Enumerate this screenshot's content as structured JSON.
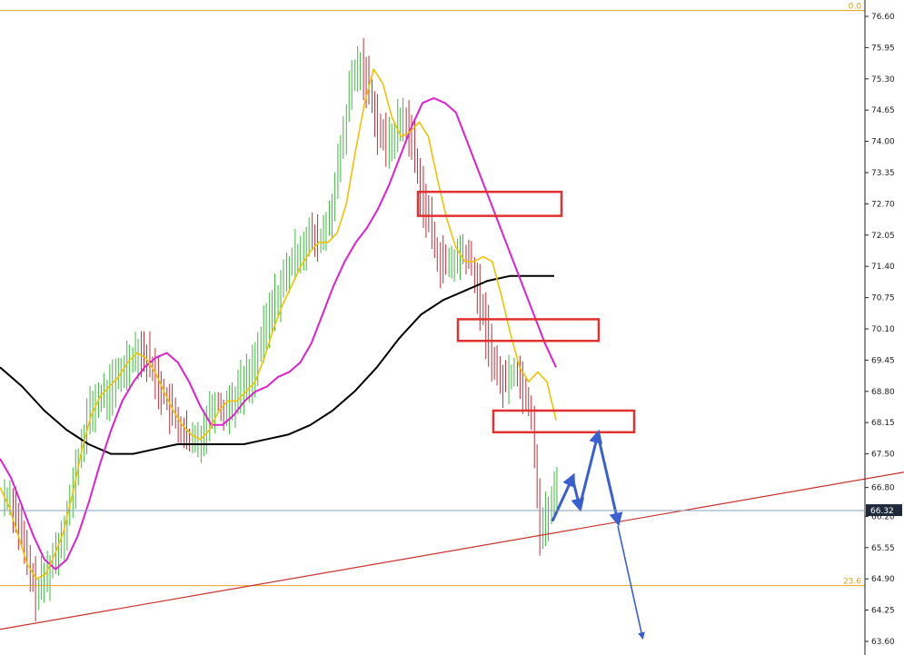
{
  "chart_data": {
    "type": "candlestick",
    "title": "",
    "xlabel": "",
    "ylabel": "",
    "ylim": [
      63.6,
      76.6
    ],
    "y_ticks": [
      "76.60",
      "75.95",
      "75.30",
      "74.65",
      "74.00",
      "73.35",
      "72.70",
      "72.05",
      "71.40",
      "70.75",
      "70.10",
      "69.45",
      "68.80",
      "68.15",
      "67.50",
      "66.80",
      "66.20",
      "65.55",
      "64.90",
      "64.25",
      "63.60"
    ],
    "current_price": "66.32",
    "current_price_value": 66.32,
    "fib_levels": [
      {
        "label": "0.0",
        "value": 76.72,
        "color": "#e0a010"
      },
      {
        "label": "23.6",
        "value": 64.76,
        "color": "#f0a020"
      }
    ],
    "trendline": {
      "color": "#c83030",
      "start": [
        0,
        63.85
      ],
      "end": [
        995,
        67.12
      ]
    },
    "close_series": [
      66.6,
      66.0,
      65.2,
      64.6,
      64.9,
      65.3,
      65.8,
      66.5,
      67.4,
      68.2,
      68.6,
      68.7,
      68.9,
      69.2,
      69.5,
      69.7,
      69.5,
      69.1,
      68.7,
      68.3,
      68.0,
      67.7,
      67.8,
      68.2,
      68.6,
      68.4,
      68.6,
      68.9,
      69.1,
      69.6,
      70.2,
      70.7,
      71.1,
      71.5,
      71.8,
      72.0,
      71.9,
      72.2,
      73.0,
      74.2,
      75.3,
      75.6,
      75.1,
      74.3,
      73.9,
      74.2,
      74.5,
      74.0,
      73.0,
      72.3,
      71.6,
      71.4,
      71.5,
      71.7,
      71.4,
      70.6,
      69.8,
      69.1,
      69.0,
      69.3,
      68.9,
      68.3,
      65.9,
      66.3,
      66.8
    ],
    "ma_fast": {
      "color": "#f2c200",
      "values": [
        66.8,
        66.4,
        65.8,
        65.2,
        64.9,
        65.0,
        65.4,
        65.9,
        66.7,
        67.6,
        68.3,
        68.7,
        68.9,
        69.1,
        69.4,
        69.6,
        69.5,
        69.2,
        68.8,
        68.4,
        68.1,
        67.9,
        67.8,
        68.0,
        68.4,
        68.6,
        68.6,
        68.8,
        69.0,
        69.5,
        70.1,
        70.6,
        71.0,
        71.4,
        71.7,
        71.9,
        71.9,
        72.1,
        72.7,
        73.8,
        74.8,
        75.5,
        75.2,
        74.5,
        74.1,
        74.2,
        74.4,
        74.1,
        73.2,
        72.4,
        71.8,
        71.5,
        71.5,
        71.6,
        71.5,
        70.8,
        70.0,
        69.3,
        69.0,
        69.2,
        69.0,
        68.2
      ]
    },
    "ma_mid": {
      "color": "#e020d0",
      "values": [
        67.4,
        67.0,
        66.4,
        65.8,
        65.3,
        65.1,
        65.3,
        65.8,
        66.5,
        67.3,
        68.0,
        68.6,
        69.0,
        69.3,
        69.5,
        69.6,
        69.4,
        69.0,
        68.5,
        68.1,
        68.1,
        68.3,
        68.6,
        68.8,
        68.9,
        69.1,
        69.2,
        69.4,
        69.8,
        70.4,
        71.0,
        71.5,
        71.9,
        72.2,
        72.6,
        73.1,
        73.7,
        74.3,
        74.8,
        74.9,
        74.8,
        74.6,
        74.0,
        73.4,
        72.8,
        72.2,
        71.6,
        71.0,
        70.4,
        69.8,
        69.3
      ]
    },
    "ma_slow": {
      "color": "#000000",
      "values": [
        69.3,
        68.9,
        68.4,
        68.0,
        67.7,
        67.5,
        67.5,
        67.6,
        67.7,
        67.7,
        67.7,
        67.7,
        67.8,
        67.9,
        68.1,
        68.4,
        68.8,
        69.3,
        69.9,
        70.4,
        70.7,
        70.9,
        71.1,
        71.2,
        71.2,
        71.2
      ]
    },
    "zones": [
      {
        "name": "resistance-zone-upper",
        "y_top": 72.95,
        "y_bottom": 72.45
      },
      {
        "name": "resistance-zone-middle",
        "y_top": 70.3,
        "y_bottom": 69.85
      },
      {
        "name": "resistance-zone-lower",
        "y_top": 68.4,
        "y_bottom": 67.95
      }
    ],
    "projection": {
      "color": "#3a5fd0",
      "path": [
        [
          608,
          66.1
        ],
        [
          630,
          67.0
        ],
        [
          638,
          66.4
        ],
        [
          658,
          67.9
        ],
        [
          680,
          66.1
        ]
      ],
      "continuation": [
        [
          680,
          66.0
        ],
        [
          707,
          63.62
        ]
      ]
    }
  }
}
